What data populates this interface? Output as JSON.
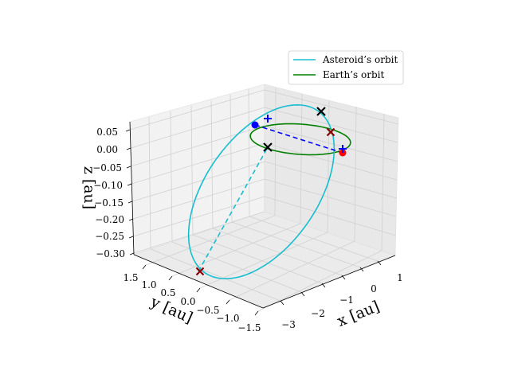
{
  "chart_data": {
    "type": "line",
    "projection": "3d",
    "grid": true,
    "legend_position": "top-right",
    "axes": {
      "x": {
        "label": "x [au]",
        "ticks": [
          "−3",
          "−2",
          "−1",
          "0",
          "1"
        ]
      },
      "y": {
        "label": "y [au]",
        "ticks": [
          "1.5",
          "1.0",
          "0.5",
          "0.0",
          "−0.5",
          "−1.0",
          "−1.5"
        ]
      },
      "z": {
        "label": "z [au]",
        "ticks": [
          "0.05",
          "0.00",
          "−0.05",
          "−0.10",
          "−0.15",
          "−0.20",
          "−0.25",
          "−0.30"
        ]
      }
    },
    "series": [
      {
        "name": "Asteroid’s orbit",
        "color": "#17becf",
        "style": "solid"
      },
      {
        "name": "Earth’s orbit",
        "color": "#008000",
        "style": "solid"
      }
    ],
    "lines": [
      {
        "color": "#17becf",
        "style": "dashed"
      },
      {
        "color": "#0000ff",
        "style": "dashed"
      }
    ],
    "markers": [
      {
        "shape": "circle",
        "color": "#0000ff"
      },
      {
        "shape": "circle",
        "color": "#ff0000"
      },
      {
        "shape": "plus",
        "color": "#0000ff"
      },
      {
        "shape": "plus",
        "color": "#0000ff"
      },
      {
        "shape": "x",
        "color": "#000000"
      },
      {
        "shape": "x",
        "color": "#000000"
      },
      {
        "shape": "x",
        "color": "#8b0000"
      },
      {
        "shape": "x",
        "color": "#8b0000"
      }
    ]
  }
}
